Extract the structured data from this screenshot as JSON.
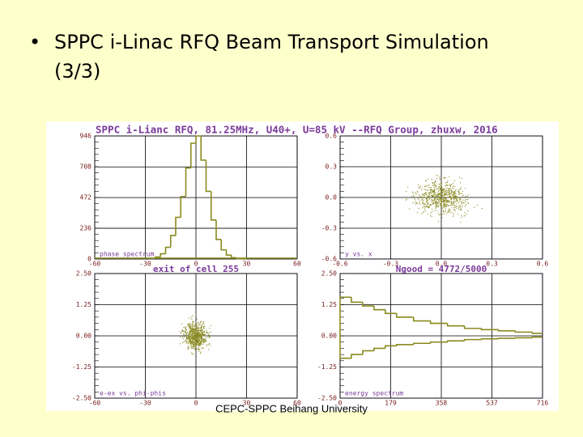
{
  "slide": {
    "bullet": "•",
    "title_lines": [
      "SPPC i-Linac RFQ Beam Transport Simulation",
      "(3/3)"
    ],
    "footer": "CEPC-SPPC Beihang University"
  },
  "figure": {
    "header": "SPPC i-Lianc RFQ, 81.25MHz, U40+, U=85 kV  --RFQ Group, zhuxw, 2016",
    "panels": [
      {
        "label": "phase spectrum",
        "caption": "exit of cell 255",
        "xlim": [
          -60,
          60
        ],
        "ylim": [
          0,
          946
        ],
        "xticks": [
          -60,
          -30,
          0,
          30,
          60
        ],
        "yticks": [
          0,
          236,
          472,
          708,
          946
        ],
        "histogram": {
          "edges": [
            -27,
            -24,
            -21,
            -18,
            -15,
            -12,
            -9,
            -6,
            -3,
            0,
            3,
            6,
            9,
            12,
            15,
            18,
            21,
            24,
            27,
            30
          ],
          "counts": [
            5,
            15,
            40,
            90,
            180,
            320,
            480,
            700,
            890,
            946,
            760,
            520,
            300,
            150,
            70,
            30,
            10,
            3,
            0
          ]
        }
      },
      {
        "label": "y vs. x",
        "caption": "Ngood = 4772/5000",
        "xlim": [
          -0.6,
          0.6
        ],
        "ylim": [
          -0.6,
          0.6
        ],
        "xticks": [
          -0.6,
          -0.3,
          {
            "value": 0,
            "label": "0.0"
          },
          0.3,
          0.6
        ],
        "yticks": [
          -0.6,
          -0.3,
          {
            "value": 0,
            "label": "0.0"
          },
          0.3,
          0.6
        ]
      },
      {
        "label": "e-ex vs. phi-phis",
        "xlim": [
          -60,
          60
        ],
        "ylim": [
          -2.5,
          2.5
        ],
        "xticks": [
          -60,
          -30,
          0,
          30,
          60
        ],
        "yticks": [
          {
            "value": -2.5,
            "label": "-2.50"
          },
          -1.25,
          {
            "value": 0,
            "label": "0.00"
          },
          1.25,
          {
            "value": 2.5,
            "label": "2.50"
          }
        ]
      },
      {
        "label": "energy spectrum",
        "xlim": [
          0,
          716
        ],
        "ylim": [
          -2.5,
          2.5
        ],
        "xticks": [
          0,
          179,
          358,
          537,
          716
        ],
        "yticks": [
          {
            "value": -2.5,
            "label": "-2.50"
          },
          -1.25,
          {
            "value": 0,
            "label": "0.00"
          },
          1.25,
          {
            "value": 2.5,
            "label": "2.50"
          }
        ],
        "steps": [
          {
            "edges": [
              0,
              40,
              80,
              120,
              160,
              200,
              260,
              320,
              380,
              440,
              500,
              560,
              620,
              680,
              716
            ],
            "values": [
              1.55,
              1.35,
              1.2,
              1.05,
              0.9,
              0.75,
              0.6,
              0.5,
              0.4,
              0.3,
              0.25,
              0.2,
              0.15,
              0.1
            ]
          },
          {
            "edges": [
              0,
              40,
              80,
              120,
              160,
              200,
              260,
              320,
              380,
              440,
              500,
              560,
              620,
              680,
              716
            ],
            "values": [
              -0.9,
              -0.75,
              -0.6,
              -0.5,
              -0.4,
              -0.35,
              -0.3,
              -0.25,
              -0.2,
              -0.15,
              -0.12,
              -0.1,
              -0.08,
              -0.05
            ]
          }
        ]
      }
    ]
  }
}
